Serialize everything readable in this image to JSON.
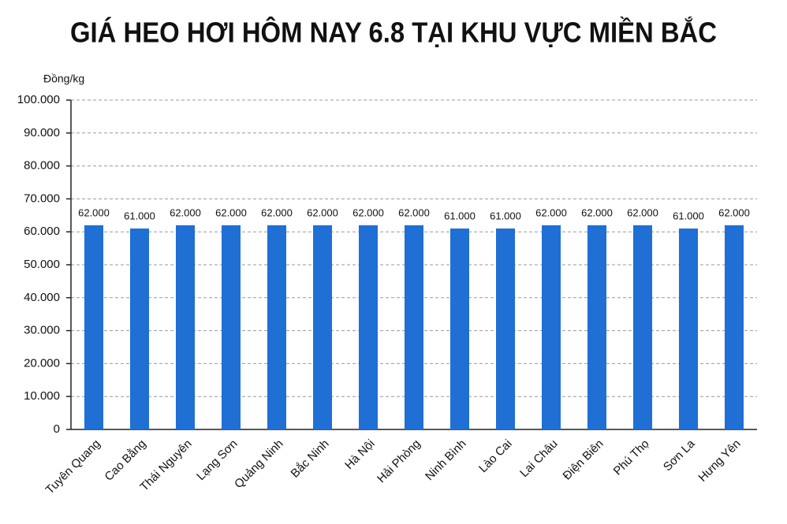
{
  "chart_data": {
    "type": "bar",
    "title": "GIÁ HEO HƠI HÔM NAY 6.8 TẠI KHU VỰC MIỀN BẮC",
    "y_label": "Đồng/kg",
    "categories": [
      "Tuyên Quang",
      "Cao Bằng",
      "Thái Nguyên",
      "Lạng Sơn",
      "Quảng Ninh",
      "Bắc Ninh",
      "Hà Nội",
      "Hải Phòng",
      "Ninh Bình",
      "Lào Cai",
      "Lai Châu",
      "Điện Biên",
      "Phú Thọ",
      "Sơn La",
      "Hưng Yên"
    ],
    "values": [
      62000,
      61000,
      62000,
      62000,
      62000,
      62000,
      62000,
      62000,
      61000,
      61000,
      62000,
      62000,
      62000,
      61000,
      62000
    ],
    "value_labels": [
      "62.000",
      "61.000",
      "62.000",
      "62.000",
      "62.000",
      "62.000",
      "62.000",
      "62.000",
      "61.000",
      "61.000",
      "62.000",
      "62.000",
      "62.000",
      "61.000",
      "62.000"
    ],
    "color": "#1f6fd4",
    "ylim": [
      0,
      100000
    ],
    "yticks": [
      0,
      {
        "value": 10000,
        "label": "10.000"
      },
      {
        "value": 20000,
        "label": "20.000"
      },
      {
        "value": 30000,
        "label": "30.000"
      },
      {
        "value": 40000,
        "label": "40.000"
      },
      {
        "value": 50000,
        "label": "50.000"
      },
      {
        "value": 60000,
        "label": "60.000"
      },
      {
        "value": 70000,
        "label": "70.000"
      },
      {
        "value": 80000,
        "label": "80.000"
      },
      {
        "value": 90000,
        "label": "90.000"
      },
      {
        "value": 100000,
        "label": "100.000"
      }
    ],
    "grid": true
  }
}
